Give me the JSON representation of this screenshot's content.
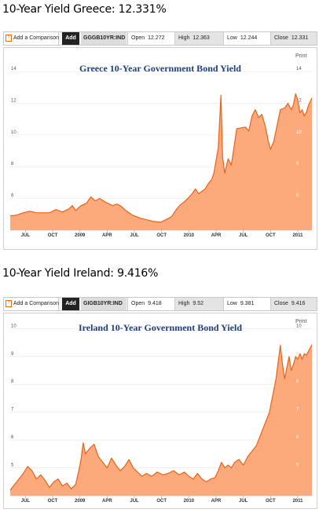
{
  "panels": [
    {
      "heading": "10-Year Yield Greece: 12.331%",
      "toolbar": {
        "add_comparison": "Add a Comparison",
        "add": "Add",
        "ticker": "GGGB10YR:IND",
        "open_label": "Open",
        "open_value": "12.272",
        "high_label": "High",
        "high_value": "12.363",
        "low_label": "Low",
        "low_value": "12.244",
        "close_label": "Close",
        "close_value": "12.331"
      },
      "print": "Print"
    },
    {
      "heading": "10-Year Yield Ireland: 9.416%",
      "toolbar": {
        "add_comparison": "Add a Comparison",
        "add": "Add",
        "ticker": "GIGB10YR:IND",
        "open_label": "Open",
        "open_value": "9.418",
        "high_label": "High",
        "high_value": "9.52",
        "low_label": "Low",
        "low_value": "9.381",
        "close_label": "Close",
        "close_value": "9.416"
      },
      "print": "Print"
    }
  ],
  "colors": {
    "fill": "#fcaa7c",
    "line": "#e8631a",
    "title": "#1f3f79",
    "grid": "#e6e6e6"
  },
  "chart_data": [
    {
      "type": "area",
      "title": "Greece 10-Year Government Bond Yield",
      "ylim": [
        4,
        14.6
      ],
      "yticks": [
        14,
        12,
        10,
        8,
        6
      ],
      "xlim": [
        2008.4,
        2011.17
      ],
      "xticks": [
        {
          "t": 2008.54,
          "label": "JUL"
        },
        {
          "t": 2008.79,
          "label": "OCT"
        },
        {
          "t": 2009.04,
          "label": "2009"
        },
        {
          "t": 2009.29,
          "label": "APR"
        },
        {
          "t": 2009.54,
          "label": "JUL"
        },
        {
          "t": 2009.79,
          "label": "OCT"
        },
        {
          "t": 2010.04,
          "label": "2010"
        },
        {
          "t": 2010.29,
          "label": "APR"
        },
        {
          "t": 2010.54,
          "label": "JUL"
        },
        {
          "t": 2010.79,
          "label": "OCT"
        },
        {
          "t": 2011.04,
          "label": "2011"
        }
      ],
      "grid": true,
      "points": [
        [
          2008.4,
          4.9
        ],
        [
          2008.46,
          4.95
        ],
        [
          2008.52,
          5.1
        ],
        [
          2008.58,
          5.2
        ],
        [
          2008.64,
          5.1
        ],
        [
          2008.7,
          5.1
        ],
        [
          2008.76,
          5.1
        ],
        [
          2008.82,
          5.3
        ],
        [
          2008.88,
          5.15
        ],
        [
          2008.94,
          5.35
        ],
        [
          2008.97,
          5.55
        ],
        [
          2009.0,
          5.25
        ],
        [
          2009.05,
          5.55
        ],
        [
          2009.1,
          5.7
        ],
        [
          2009.14,
          6.1
        ],
        [
          2009.18,
          5.85
        ],
        [
          2009.22,
          6.0
        ],
        [
          2009.28,
          5.75
        ],
        [
          2009.34,
          5.55
        ],
        [
          2009.38,
          5.65
        ],
        [
          2009.42,
          5.5
        ],
        [
          2009.46,
          5.25
        ],
        [
          2009.52,
          4.95
        ],
        [
          2009.6,
          4.75
        ],
        [
          2009.66,
          4.65
        ],
        [
          2009.72,
          4.55
        ],
        [
          2009.78,
          4.5
        ],
        [
          2009.84,
          4.7
        ],
        [
          2009.88,
          4.85
        ],
        [
          2009.92,
          5.25
        ],
        [
          2009.96,
          5.6
        ],
        [
          2010.0,
          5.8
        ],
        [
          2010.03,
          6.0
        ],
        [
          2010.07,
          6.3
        ],
        [
          2010.1,
          6.6
        ],
        [
          2010.13,
          6.3
        ],
        [
          2010.16,
          6.45
        ],
        [
          2010.19,
          6.6
        ],
        [
          2010.22,
          6.95
        ],
        [
          2010.25,
          7.2
        ],
        [
          2010.27,
          7.6
        ],
        [
          2010.29,
          8.4
        ],
        [
          2010.31,
          9.2
        ],
        [
          2010.335,
          12.5
        ],
        [
          2010.35,
          8.6
        ],
        [
          2010.37,
          7.6
        ],
        [
          2010.4,
          8.5
        ],
        [
          2010.43,
          8.1
        ],
        [
          2010.46,
          9.5
        ],
        [
          2010.48,
          10.4
        ],
        [
          2010.52,
          10.45
        ],
        [
          2010.56,
          10.5
        ],
        [
          2010.59,
          10.25
        ],
        [
          2010.62,
          11.2
        ],
        [
          2010.65,
          11.6
        ],
        [
          2010.68,
          11.1
        ],
        [
          2010.71,
          11.3
        ],
        [
          2010.74,
          10.6
        ],
        [
          2010.77,
          9.6
        ],
        [
          2010.79,
          9.1
        ],
        [
          2010.82,
          9.6
        ],
        [
          2010.85,
          10.6
        ],
        [
          2010.88,
          11.6
        ],
        [
          2010.92,
          11.7
        ],
        [
          2010.95,
          12.0
        ],
        [
          2010.98,
          11.6
        ],
        [
          2011.0,
          11.9
        ],
        [
          2011.02,
          12.6
        ],
        [
          2011.04,
          12.2
        ],
        [
          2011.06,
          11.4
        ],
        [
          2011.08,
          11.6
        ],
        [
          2011.1,
          11.2
        ],
        [
          2011.12,
          11.45
        ],
        [
          2011.14,
          11.9
        ],
        [
          2011.17,
          12.33
        ]
      ]
    },
    {
      "type": "area",
      "title": "Ireland 10-Year Government Bond Yield",
      "ylim": [
        4.0,
        10.15
      ],
      "yticks": [
        10,
        9,
        8,
        7,
        6,
        5
      ],
      "xlim": [
        2008.4,
        2011.17
      ],
      "xticks": [
        {
          "t": 2008.54,
          "label": "JUL"
        },
        {
          "t": 2008.79,
          "label": "OCT"
        },
        {
          "t": 2009.04,
          "label": "2009"
        },
        {
          "t": 2009.29,
          "label": "APR"
        },
        {
          "t": 2009.54,
          "label": "JUL"
        },
        {
          "t": 2009.79,
          "label": "OCT"
        },
        {
          "t": 2010.04,
          "label": "2010"
        },
        {
          "t": 2010.29,
          "label": "APR"
        },
        {
          "t": 2010.54,
          "label": "JUL"
        },
        {
          "t": 2010.79,
          "label": "OCT"
        },
        {
          "t": 2011.04,
          "label": "2011"
        }
      ],
      "grid": true,
      "points": [
        [
          2008.4,
          4.2
        ],
        [
          2008.44,
          4.4
        ],
        [
          2008.48,
          4.6
        ],
        [
          2008.52,
          4.8
        ],
        [
          2008.56,
          5.05
        ],
        [
          2008.6,
          4.9
        ],
        [
          2008.64,
          4.6
        ],
        [
          2008.68,
          4.75
        ],
        [
          2008.72,
          4.55
        ],
        [
          2008.76,
          4.3
        ],
        [
          2008.8,
          4.5
        ],
        [
          2008.84,
          4.6
        ],
        [
          2008.88,
          4.35
        ],
        [
          2008.92,
          4.45
        ],
        [
          2008.96,
          4.25
        ],
        [
          2009.0,
          4.4
        ],
        [
          2009.03,
          4.9
        ],
        [
          2009.05,
          5.3
        ],
        [
          2009.07,
          5.9
        ],
        [
          2009.09,
          5.5
        ],
        [
          2009.13,
          5.7
        ],
        [
          2009.17,
          5.85
        ],
        [
          2009.21,
          5.4
        ],
        [
          2009.25,
          5.2
        ],
        [
          2009.29,
          5.0
        ],
        [
          2009.33,
          5.35
        ],
        [
          2009.37,
          5.1
        ],
        [
          2009.41,
          4.9
        ],
        [
          2009.45,
          5.05
        ],
        [
          2009.49,
          5.3
        ],
        [
          2009.53,
          5.0
        ],
        [
          2009.57,
          4.85
        ],
        [
          2009.61,
          4.7
        ],
        [
          2009.65,
          4.8
        ],
        [
          2009.7,
          4.7
        ],
        [
          2009.75,
          4.85
        ],
        [
          2009.8,
          4.75
        ],
        [
          2009.85,
          4.8
        ],
        [
          2009.9,
          4.9
        ],
        [
          2009.95,
          4.75
        ],
        [
          2010.0,
          4.85
        ],
        [
          2010.04,
          4.7
        ],
        [
          2010.08,
          4.6
        ],
        [
          2010.12,
          4.8
        ],
        [
          2010.16,
          4.6
        ],
        [
          2010.2,
          4.5
        ],
        [
          2010.24,
          4.6
        ],
        [
          2010.28,
          4.65
        ],
        [
          2010.31,
          4.9
        ],
        [
          2010.34,
          5.2
        ],
        [
          2010.37,
          5.0
        ],
        [
          2010.4,
          5.1
        ],
        [
          2010.43,
          5.0
        ],
        [
          2010.46,
          5.2
        ],
        [
          2010.5,
          5.3
        ],
        [
          2010.54,
          5.1
        ],
        [
          2010.58,
          5.4
        ],
        [
          2010.62,
          5.6
        ],
        [
          2010.66,
          5.8
        ],
        [
          2010.69,
          6.1
        ],
        [
          2010.72,
          6.4
        ],
        [
          2010.75,
          6.7
        ],
        [
          2010.78,
          7.0
        ],
        [
          2010.81,
          7.6
        ],
        [
          2010.84,
          8.2
        ],
        [
          2010.86,
          8.8
        ],
        [
          2010.88,
          9.4
        ],
        [
          2010.9,
          8.7
        ],
        [
          2010.92,
          8.2
        ],
        [
          2010.94,
          8.6
        ],
        [
          2010.96,
          9.0
        ],
        [
          2010.98,
          8.5
        ],
        [
          2011.0,
          8.7
        ],
        [
          2011.02,
          9.0
        ],
        [
          2011.04,
          8.9
        ],
        [
          2011.06,
          9.1
        ],
        [
          2011.08,
          8.9
        ],
        [
          2011.1,
          9.1
        ],
        [
          2011.12,
          9.05
        ],
        [
          2011.14,
          9.2
        ],
        [
          2011.17,
          9.42
        ]
      ]
    }
  ]
}
